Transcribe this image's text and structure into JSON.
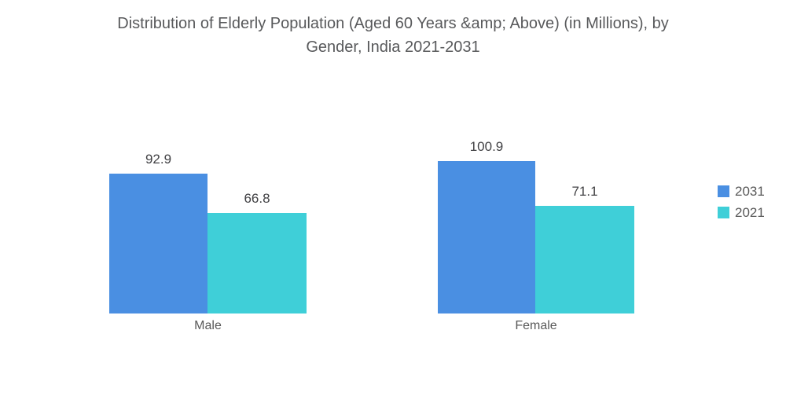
{
  "title": {
    "line1": "Distribution of Elderly Population (Aged 60 Years &amp; Above) (in Millions), by",
    "line2": "Gender, India 2021-2031"
  },
  "legend": {
    "items": [
      {
        "label": "2031",
        "color": "#4A8FE2"
      },
      {
        "label": "2021",
        "color": "#3FCFD8"
      }
    ]
  },
  "chart_data": {
    "type": "bar",
    "title": "Distribution of Elderly Population (Aged 60 Years &amp; Above) (in Millions), by Gender, India 2021-2031",
    "categories": [
      "Male",
      "Female"
    ],
    "series": [
      {
        "name": "2031",
        "color": "#4A8FE2",
        "values": [
          92.9,
          100.9
        ]
      },
      {
        "name": "2021",
        "color": "#3FCFD8",
        "values": [
          66.8,
          71.1
        ]
      }
    ],
    "xlabel": "",
    "ylabel": "",
    "value_labels": true,
    "grid": false,
    "axes_visible": false,
    "legend_position": "right",
    "units": "Millions"
  }
}
